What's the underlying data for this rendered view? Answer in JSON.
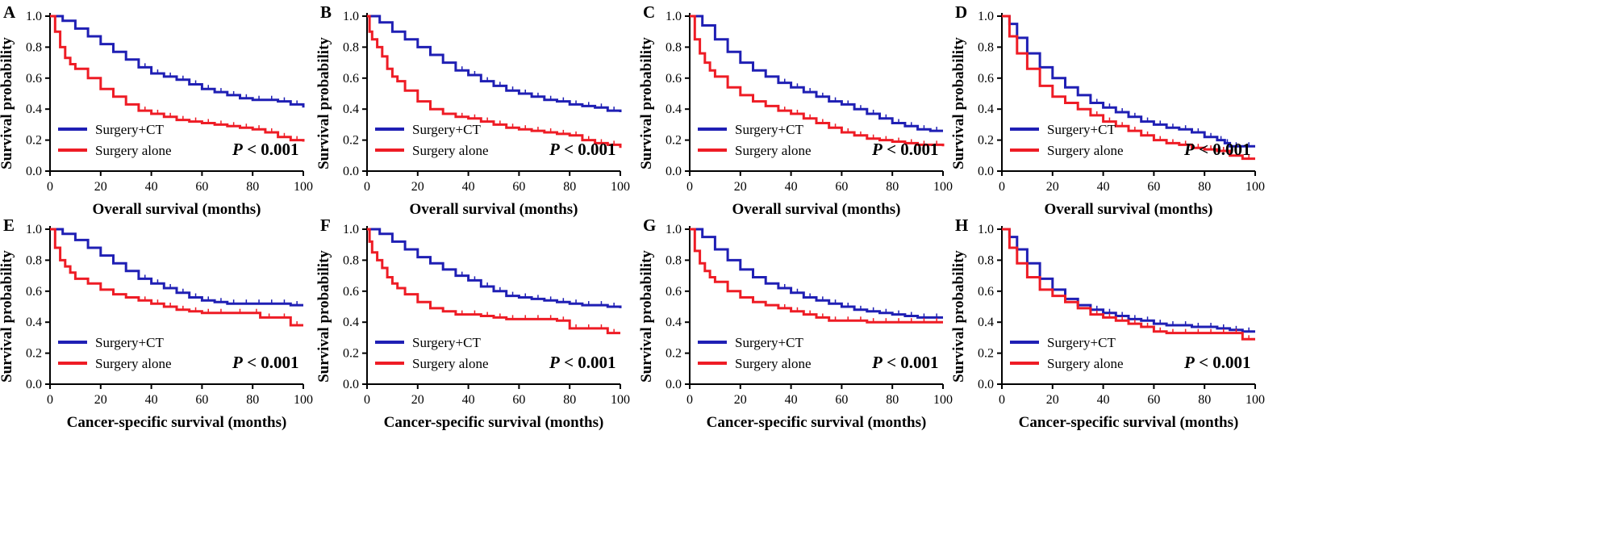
{
  "chart_data": [
    {
      "panel": "A",
      "type": "line",
      "title": "",
      "xlabel": "Overall survival (months)",
      "ylabel": "Survival probability",
      "xlim": [
        0,
        100
      ],
      "ylim": [
        0,
        1.0
      ],
      "xticks": [
        "0",
        "20",
        "40",
        "60",
        "80",
        "100"
      ],
      "yticks": [
        "0.0",
        "0.2",
        "0.4",
        "0.6",
        "0.8",
        "1.0"
      ],
      "pvalue_prefix": "P",
      "pvalue_rest": " < 0.001",
      "legend_position": "bottom-left",
      "series": [
        {
          "name": "Surgery+CT",
          "color": "#1f1fb4",
          "x": [
            0,
            5,
            10,
            15,
            20,
            25,
            30,
            35,
            40,
            45,
            50,
            55,
            60,
            65,
            70,
            75,
            80,
            85,
            90,
            95,
            100
          ],
          "y": [
            1.0,
            0.97,
            0.92,
            0.87,
            0.82,
            0.77,
            0.72,
            0.67,
            0.63,
            0.61,
            0.59,
            0.56,
            0.53,
            0.51,
            0.49,
            0.47,
            0.46,
            0.46,
            0.45,
            0.43,
            0.41
          ]
        },
        {
          "name": "Surgery alone",
          "color": "#ee1c25",
          "x": [
            0,
            2,
            4,
            6,
            8,
            10,
            15,
            20,
            25,
            30,
            35,
            40,
            45,
            50,
            55,
            60,
            65,
            70,
            75,
            80,
            85,
            90,
            95,
            100
          ],
          "y": [
            1.0,
            0.9,
            0.8,
            0.73,
            0.69,
            0.66,
            0.6,
            0.53,
            0.48,
            0.43,
            0.39,
            0.37,
            0.35,
            0.33,
            0.32,
            0.31,
            0.3,
            0.29,
            0.28,
            0.27,
            0.25,
            0.22,
            0.2,
            0.19
          ]
        }
      ]
    },
    {
      "panel": "B",
      "type": "line",
      "title": "",
      "xlabel": "Overall survival (months)",
      "ylabel": "Survival probability",
      "xlim": [
        0,
        100
      ],
      "ylim": [
        0,
        1.0
      ],
      "xticks": [
        "0",
        "20",
        "40",
        "60",
        "80",
        "100"
      ],
      "yticks": [
        "0.0",
        "0.2",
        "0.4",
        "0.6",
        "0.8",
        "1.0"
      ],
      "pvalue_prefix": "P",
      "pvalue_rest": " < 0.001",
      "legend_position": "bottom-left",
      "series": [
        {
          "name": "Surgery+CT",
          "color": "#1f1fb4",
          "x": [
            0,
            5,
            10,
            15,
            20,
            25,
            30,
            35,
            40,
            45,
            50,
            55,
            60,
            65,
            70,
            75,
            80,
            85,
            90,
            95,
            100
          ],
          "y": [
            1.0,
            0.96,
            0.9,
            0.85,
            0.8,
            0.75,
            0.7,
            0.65,
            0.62,
            0.58,
            0.55,
            0.52,
            0.5,
            0.48,
            0.46,
            0.45,
            0.43,
            0.42,
            0.41,
            0.39,
            0.38
          ]
        },
        {
          "name": "Surgery alone",
          "color": "#ee1c25",
          "x": [
            0,
            1,
            2,
            4,
            6,
            8,
            10,
            12,
            15,
            20,
            25,
            30,
            35,
            40,
            45,
            50,
            55,
            60,
            65,
            70,
            75,
            80,
            85,
            90,
            95,
            100
          ],
          "y": [
            1.0,
            0.9,
            0.85,
            0.8,
            0.74,
            0.66,
            0.61,
            0.58,
            0.52,
            0.45,
            0.4,
            0.37,
            0.35,
            0.34,
            0.32,
            0.3,
            0.28,
            0.27,
            0.26,
            0.25,
            0.24,
            0.23,
            0.2,
            0.18,
            0.17,
            0.15
          ]
        }
      ]
    },
    {
      "panel": "C",
      "type": "line",
      "title": "",
      "xlabel": "Overall survival (months)",
      "ylabel": "Survival probability",
      "xlim": [
        0,
        100
      ],
      "ylim": [
        0,
        1.0
      ],
      "xticks": [
        "0",
        "20",
        "40",
        "60",
        "80",
        "100"
      ],
      "yticks": [
        "0.0",
        "0.2",
        "0.4",
        "0.6",
        "0.8",
        "1.0"
      ],
      "pvalue_prefix": "P",
      "pvalue_rest": " < 0.001",
      "legend_position": "bottom-left",
      "series": [
        {
          "name": "Surgery+CT",
          "color": "#1f1fb4",
          "x": [
            0,
            5,
            10,
            15,
            20,
            25,
            30,
            35,
            40,
            45,
            50,
            55,
            60,
            65,
            70,
            75,
            80,
            85,
            90,
            95,
            100
          ],
          "y": [
            1.0,
            0.94,
            0.85,
            0.77,
            0.7,
            0.65,
            0.61,
            0.57,
            0.54,
            0.51,
            0.48,
            0.45,
            0.43,
            0.4,
            0.37,
            0.34,
            0.31,
            0.29,
            0.27,
            0.26,
            0.26
          ]
        },
        {
          "name": "Surgery alone",
          "color": "#ee1c25",
          "x": [
            0,
            2,
            4,
            6,
            8,
            10,
            15,
            20,
            25,
            30,
            35,
            40,
            45,
            50,
            55,
            60,
            65,
            70,
            75,
            80,
            85,
            90,
            95,
            100
          ],
          "y": [
            1.0,
            0.85,
            0.76,
            0.7,
            0.65,
            0.61,
            0.54,
            0.49,
            0.45,
            0.42,
            0.39,
            0.37,
            0.34,
            0.31,
            0.28,
            0.25,
            0.23,
            0.21,
            0.2,
            0.19,
            0.18,
            0.17,
            0.17,
            0.16
          ]
        }
      ]
    },
    {
      "panel": "D",
      "type": "line",
      "title": "",
      "xlabel": "Overall survival (months)",
      "ylabel": "Survival probability",
      "xlim": [
        0,
        100
      ],
      "ylim": [
        0,
        1.0
      ],
      "xticks": [
        "0",
        "20",
        "40",
        "60",
        "80",
        "100"
      ],
      "yticks": [
        "0.0",
        "0.2",
        "0.4",
        "0.6",
        "0.8",
        "1.0"
      ],
      "pvalue_prefix": "P",
      "pvalue_rest": " < 0.001",
      "legend_position": "bottom-left",
      "series": [
        {
          "name": "Surgery+CT",
          "color": "#1f1fb4",
          "x": [
            0,
            3,
            6,
            10,
            15,
            20,
            25,
            30,
            35,
            40,
            45,
            50,
            55,
            60,
            65,
            70,
            75,
            80,
            85,
            88,
            90,
            95,
            100
          ],
          "y": [
            1.0,
            0.95,
            0.86,
            0.76,
            0.67,
            0.6,
            0.54,
            0.49,
            0.44,
            0.41,
            0.38,
            0.35,
            0.32,
            0.3,
            0.28,
            0.27,
            0.25,
            0.22,
            0.2,
            0.18,
            0.16,
            0.16,
            0.16
          ]
        },
        {
          "name": "Surgery alone",
          "color": "#ee1c25",
          "x": [
            0,
            3,
            6,
            10,
            15,
            20,
            25,
            30,
            35,
            40,
            45,
            50,
            55,
            60,
            65,
            70,
            75,
            80,
            85,
            90,
            95,
            100
          ],
          "y": [
            1.0,
            0.87,
            0.76,
            0.66,
            0.55,
            0.48,
            0.44,
            0.4,
            0.36,
            0.32,
            0.29,
            0.26,
            0.23,
            0.2,
            0.18,
            0.17,
            0.15,
            0.14,
            0.13,
            0.1,
            0.08,
            0.08
          ]
        }
      ]
    },
    {
      "panel": "E",
      "type": "line",
      "title": "",
      "xlabel": "Cancer-specific survival (months)",
      "ylabel": "Survival probability",
      "xlim": [
        0,
        100
      ],
      "ylim": [
        0,
        1.0
      ],
      "xticks": [
        "0",
        "20",
        "40",
        "60",
        "80",
        "100"
      ],
      "yticks": [
        "0.0",
        "0.2",
        "0.4",
        "0.6",
        "0.8",
        "1.0"
      ],
      "pvalue_prefix": "P",
      "pvalue_rest": " < 0.001",
      "legend_position": "bottom-left",
      "series": [
        {
          "name": "Surgery+CT",
          "color": "#1f1fb4",
          "x": [
            0,
            5,
            10,
            15,
            20,
            25,
            30,
            35,
            40,
            45,
            50,
            55,
            60,
            65,
            70,
            75,
            80,
            85,
            90,
            95,
            100
          ],
          "y": [
            1.0,
            0.97,
            0.93,
            0.88,
            0.83,
            0.78,
            0.73,
            0.68,
            0.65,
            0.62,
            0.59,
            0.56,
            0.54,
            0.53,
            0.52,
            0.52,
            0.52,
            0.52,
            0.52,
            0.51,
            0.51
          ]
        },
        {
          "name": "Surgery alone",
          "color": "#ee1c25",
          "x": [
            0,
            2,
            4,
            6,
            8,
            10,
            15,
            20,
            25,
            30,
            35,
            40,
            45,
            50,
            55,
            60,
            65,
            70,
            80,
            83,
            90,
            95,
            100
          ],
          "y": [
            1.0,
            0.88,
            0.8,
            0.76,
            0.72,
            0.68,
            0.65,
            0.61,
            0.58,
            0.56,
            0.54,
            0.52,
            0.5,
            0.48,
            0.47,
            0.46,
            0.46,
            0.46,
            0.46,
            0.43,
            0.43,
            0.38,
            0.38
          ]
        }
      ]
    },
    {
      "panel": "F",
      "type": "line",
      "title": "",
      "xlabel": "Cancer-specific survival (months)",
      "ylabel": "Survival probability",
      "xlim": [
        0,
        100
      ],
      "ylim": [
        0,
        1.0
      ],
      "xticks": [
        "0",
        "20",
        "40",
        "60",
        "80",
        "100"
      ],
      "yticks": [
        "0.0",
        "0.2",
        "0.4",
        "0.6",
        "0.8",
        "1.0"
      ],
      "pvalue_prefix": "P",
      "pvalue_rest": " < 0.001",
      "legend_position": "bottom-left",
      "series": [
        {
          "name": "Surgery+CT",
          "color": "#1f1fb4",
          "x": [
            0,
            5,
            10,
            15,
            20,
            25,
            30,
            35,
            40,
            45,
            50,
            55,
            60,
            65,
            70,
            75,
            80,
            85,
            90,
            95,
            100
          ],
          "y": [
            1.0,
            0.97,
            0.92,
            0.87,
            0.82,
            0.78,
            0.74,
            0.7,
            0.67,
            0.63,
            0.6,
            0.57,
            0.56,
            0.55,
            0.54,
            0.53,
            0.52,
            0.51,
            0.51,
            0.5,
            0.49
          ]
        },
        {
          "name": "Surgery alone",
          "color": "#ee1c25",
          "x": [
            0,
            1,
            2,
            4,
            6,
            8,
            10,
            12,
            15,
            20,
            25,
            30,
            35,
            40,
            45,
            50,
            55,
            60,
            65,
            70,
            75,
            80,
            85,
            90,
            95,
            100
          ],
          "y": [
            1.0,
            0.92,
            0.85,
            0.8,
            0.75,
            0.69,
            0.65,
            0.62,
            0.58,
            0.53,
            0.49,
            0.47,
            0.45,
            0.45,
            0.44,
            0.43,
            0.42,
            0.42,
            0.42,
            0.42,
            0.41,
            0.36,
            0.36,
            0.36,
            0.33,
            0.33
          ]
        }
      ]
    },
    {
      "panel": "G",
      "type": "line",
      "title": "",
      "xlabel": "Cancer-specific survival (months)",
      "ylabel": "Survival probability",
      "xlim": [
        0,
        100
      ],
      "ylim": [
        0,
        1.0
      ],
      "xticks": [
        "0",
        "20",
        "40",
        "60",
        "80",
        "100"
      ],
      "yticks": [
        "0.0",
        "0.2",
        "0.4",
        "0.6",
        "0.8",
        "1.0"
      ],
      "pvalue_prefix": "P",
      "pvalue_rest": " < 0.001",
      "legend_position": "bottom-left",
      "series": [
        {
          "name": "Surgery+CT",
          "color": "#1f1fb4",
          "x": [
            0,
            5,
            10,
            15,
            20,
            25,
            30,
            35,
            40,
            45,
            50,
            55,
            60,
            65,
            70,
            75,
            80,
            85,
            90,
            95,
            100
          ],
          "y": [
            1.0,
            0.95,
            0.87,
            0.8,
            0.74,
            0.69,
            0.65,
            0.62,
            0.59,
            0.56,
            0.54,
            0.52,
            0.5,
            0.48,
            0.47,
            0.46,
            0.45,
            0.44,
            0.43,
            0.43,
            0.43
          ]
        },
        {
          "name": "Surgery alone",
          "color": "#ee1c25",
          "x": [
            0,
            2,
            4,
            6,
            8,
            10,
            15,
            20,
            25,
            30,
            35,
            40,
            45,
            50,
            55,
            60,
            65,
            70,
            75,
            80,
            85,
            90,
            95,
            100
          ],
          "y": [
            1.0,
            0.86,
            0.78,
            0.73,
            0.69,
            0.66,
            0.6,
            0.56,
            0.53,
            0.51,
            0.49,
            0.47,
            0.45,
            0.43,
            0.41,
            0.41,
            0.41,
            0.4,
            0.4,
            0.4,
            0.4,
            0.4,
            0.4,
            0.4
          ]
        }
      ]
    },
    {
      "panel": "H",
      "type": "line",
      "title": "",
      "xlabel": "Cancer-specific survival (months)",
      "ylabel": "Survival probability",
      "xlim": [
        0,
        100
      ],
      "ylim": [
        0,
        1.0
      ],
      "xticks": [
        "0",
        "20",
        "40",
        "60",
        "80",
        "100"
      ],
      "yticks": [
        "0.0",
        "0.2",
        "0.4",
        "0.6",
        "0.8",
        "1.0"
      ],
      "pvalue_prefix": "P",
      "pvalue_rest": " < 0.001",
      "legend_position": "bottom-left",
      "series": [
        {
          "name": "Surgery+CT",
          "color": "#1f1fb4",
          "x": [
            0,
            3,
            6,
            10,
            15,
            20,
            25,
            30,
            35,
            40,
            45,
            50,
            55,
            60,
            65,
            70,
            75,
            80,
            85,
            90,
            95,
            100
          ],
          "y": [
            1.0,
            0.95,
            0.87,
            0.78,
            0.68,
            0.61,
            0.55,
            0.51,
            0.48,
            0.46,
            0.44,
            0.42,
            0.41,
            0.39,
            0.38,
            0.38,
            0.37,
            0.37,
            0.36,
            0.35,
            0.34,
            0.34
          ]
        },
        {
          "name": "Surgery alone",
          "color": "#ee1c25",
          "x": [
            0,
            3,
            6,
            10,
            15,
            20,
            25,
            30,
            35,
            40,
            45,
            50,
            55,
            60,
            65,
            70,
            75,
            80,
            85,
            90,
            95,
            100
          ],
          "y": [
            1.0,
            0.88,
            0.78,
            0.69,
            0.61,
            0.57,
            0.53,
            0.49,
            0.45,
            0.43,
            0.41,
            0.39,
            0.37,
            0.34,
            0.33,
            0.33,
            0.33,
            0.33,
            0.33,
            0.33,
            0.29,
            0.29
          ]
        }
      ]
    }
  ]
}
